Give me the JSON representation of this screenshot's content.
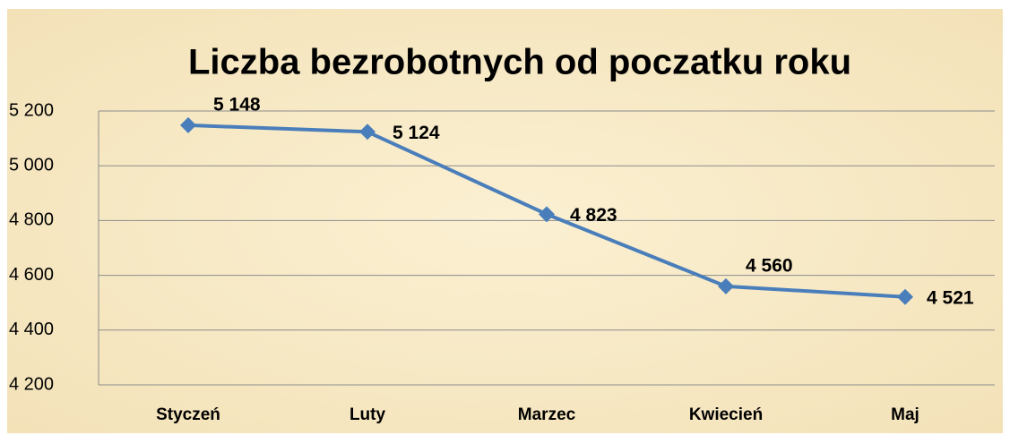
{
  "chart_data": {
    "type": "line",
    "title": "Liczba bezrobotnych od poczatku roku",
    "categories": [
      "Styczeń",
      "Luty",
      "Marzec",
      "Kwiecień",
      "Maj"
    ],
    "series": [
      {
        "name": "Liczba bezrobotnych",
        "color": "#4a7ebb",
        "values": [
          5148,
          5124,
          4823,
          4560,
          4521
        ],
        "value_labels": [
          "5 148",
          "5 124",
          "4 823",
          "4 560",
          "4 521"
        ]
      }
    ],
    "ylim": [
      4200,
      5200
    ],
    "yticks": [
      {
        "value": 4200,
        "label": "4 200"
      },
      {
        "value": 4400,
        "label": "4 400"
      },
      {
        "value": 4600,
        "label": "4 600"
      },
      {
        "value": 4800,
        "label": "4 800"
      },
      {
        "value": 5000,
        "label": "5 000"
      },
      {
        "value": 5200,
        "label": "5 200"
      }
    ],
    "grid": true
  }
}
